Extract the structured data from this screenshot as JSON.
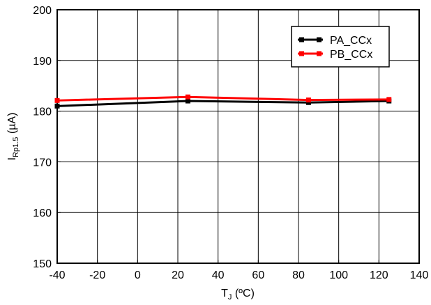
{
  "chart_data": {
    "type": "line",
    "x": [
      -40,
      25,
      85,
      125
    ],
    "series": [
      {
        "name": "PA_CCx",
        "color": "#000000",
        "values": [
          181.0,
          182.0,
          181.7,
          182.0
        ]
      },
      {
        "name": "PB_CCx",
        "color": "#ff0000",
        "values": [
          182.1,
          182.8,
          182.2,
          182.3
        ]
      }
    ],
    "xlim": [
      -40,
      140
    ],
    "ylim": [
      150,
      200
    ],
    "xticks": [
      "-40",
      "-20",
      "0",
      "20",
      "40",
      "60",
      "80",
      "100",
      "120",
      "140"
    ],
    "yticks": [
      "150",
      "160",
      "170",
      "180",
      "190",
      "200"
    ],
    "xlabel": {
      "main": "T",
      "sub": "J",
      "rest": " (ºC)"
    },
    "ylabel": {
      "main": "I",
      "sub": "Rp1.5",
      "rest": " (µA)"
    },
    "grid": true,
    "legend_position": "top-right"
  }
}
